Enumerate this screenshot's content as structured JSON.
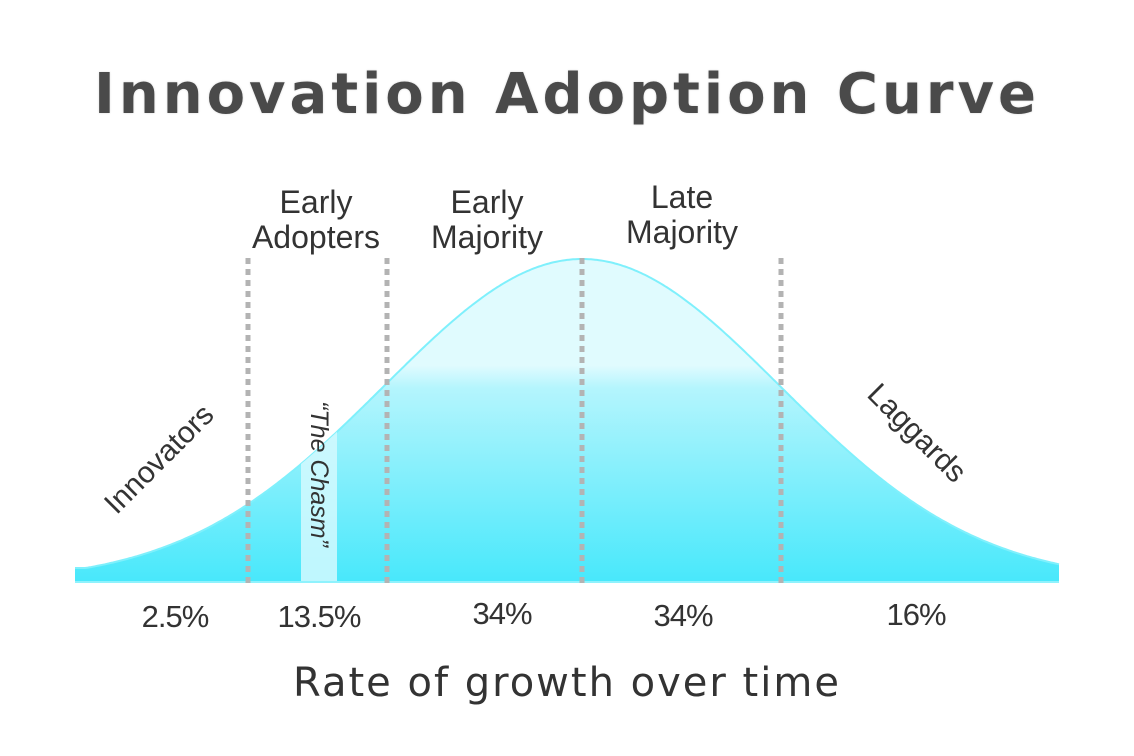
{
  "chart_data": {
    "type": "area",
    "title": "Innovation Adoption Curve",
    "xlabel": "Rate of growth over time",
    "ylabel": "",
    "description": "Bell-shaped normal distribution of technology adopters divided into segments by standard deviations",
    "segments": [
      {
        "name": "Innovators",
        "percent": "2.5%",
        "value": 2.5
      },
      {
        "name": "Early Adopters",
        "percent": "13.5%",
        "value": 13.5
      },
      {
        "name": "Early Majority",
        "percent": "34%",
        "value": 34
      },
      {
        "name": "Late Majority",
        "percent": "34%",
        "value": 34
      },
      {
        "name": "Laggards",
        "percent": "16%",
        "value": 16
      }
    ],
    "annotations": [
      "“The Chasm”"
    ],
    "grid": false,
    "legend": "none",
    "colors": {
      "fill_bottom": "#48e8fb",
      "fill_top": "#e0fbfe",
      "stroke": "#7ff0fc",
      "divider": "#b3b3b3",
      "chasm": "#c8f7fd"
    }
  },
  "labels": {
    "title": "Innovation Adoption Curve",
    "xlabel": "Rate of growth over time",
    "innovators": "Innovators",
    "early_adopters_1": "Early",
    "early_adopters_2": "Adopters",
    "early_majority_1": "Early",
    "early_majority_2": "Majority",
    "late_majority_1": "Late",
    "late_majority_2": "Majority",
    "laggards": "Laggards",
    "chasm": "“The Chasm”",
    "pct_innovators": "2.5%",
    "pct_early_adopters": "13.5%",
    "pct_early_majority": "34%",
    "pct_late_majority": "34%",
    "pct_laggards": "16%"
  }
}
